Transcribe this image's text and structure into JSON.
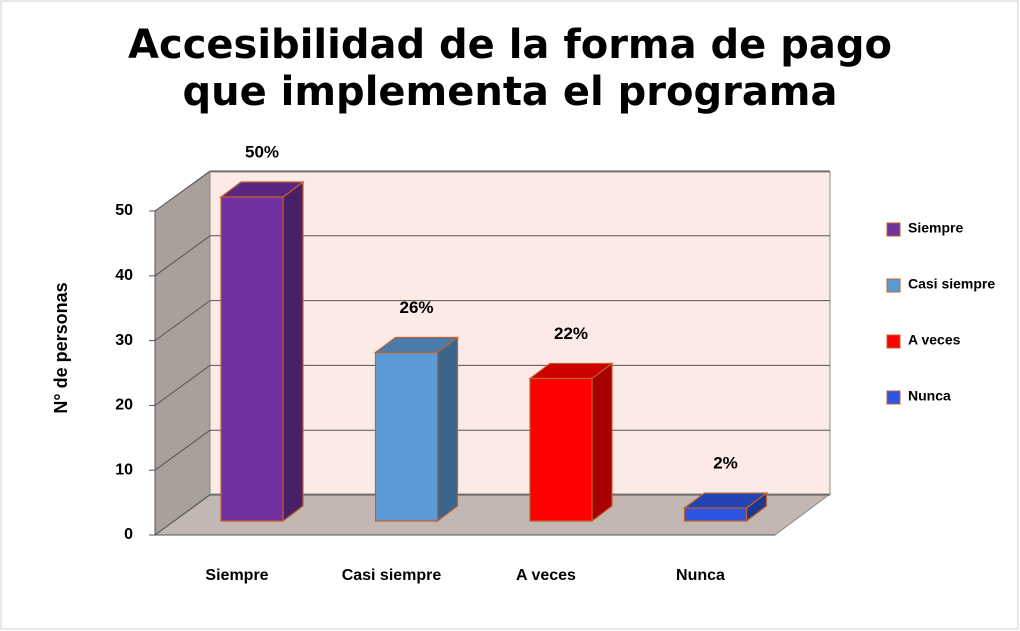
{
  "chart_data": {
    "type": "bar3d",
    "title": "Accesibilidad de la forma de pago que implementa el programa",
    "y_axis_label": "N° de personas",
    "categories": [
      "Siempre",
      "Casi siempre",
      "A veces",
      "Nunca"
    ],
    "values": [
      50,
      26,
      22,
      2
    ],
    "value_labels": [
      "50%",
      "26%",
      "22%",
      "2%"
    ],
    "colors": [
      "#7030a0",
      "#5b9bd5",
      "#ff0000",
      "#2e55e0"
    ],
    "ylim": [
      0,
      50
    ],
    "yticks": [
      0,
      10,
      20,
      30,
      40,
      50
    ],
    "grid": true,
    "legend": "right"
  }
}
